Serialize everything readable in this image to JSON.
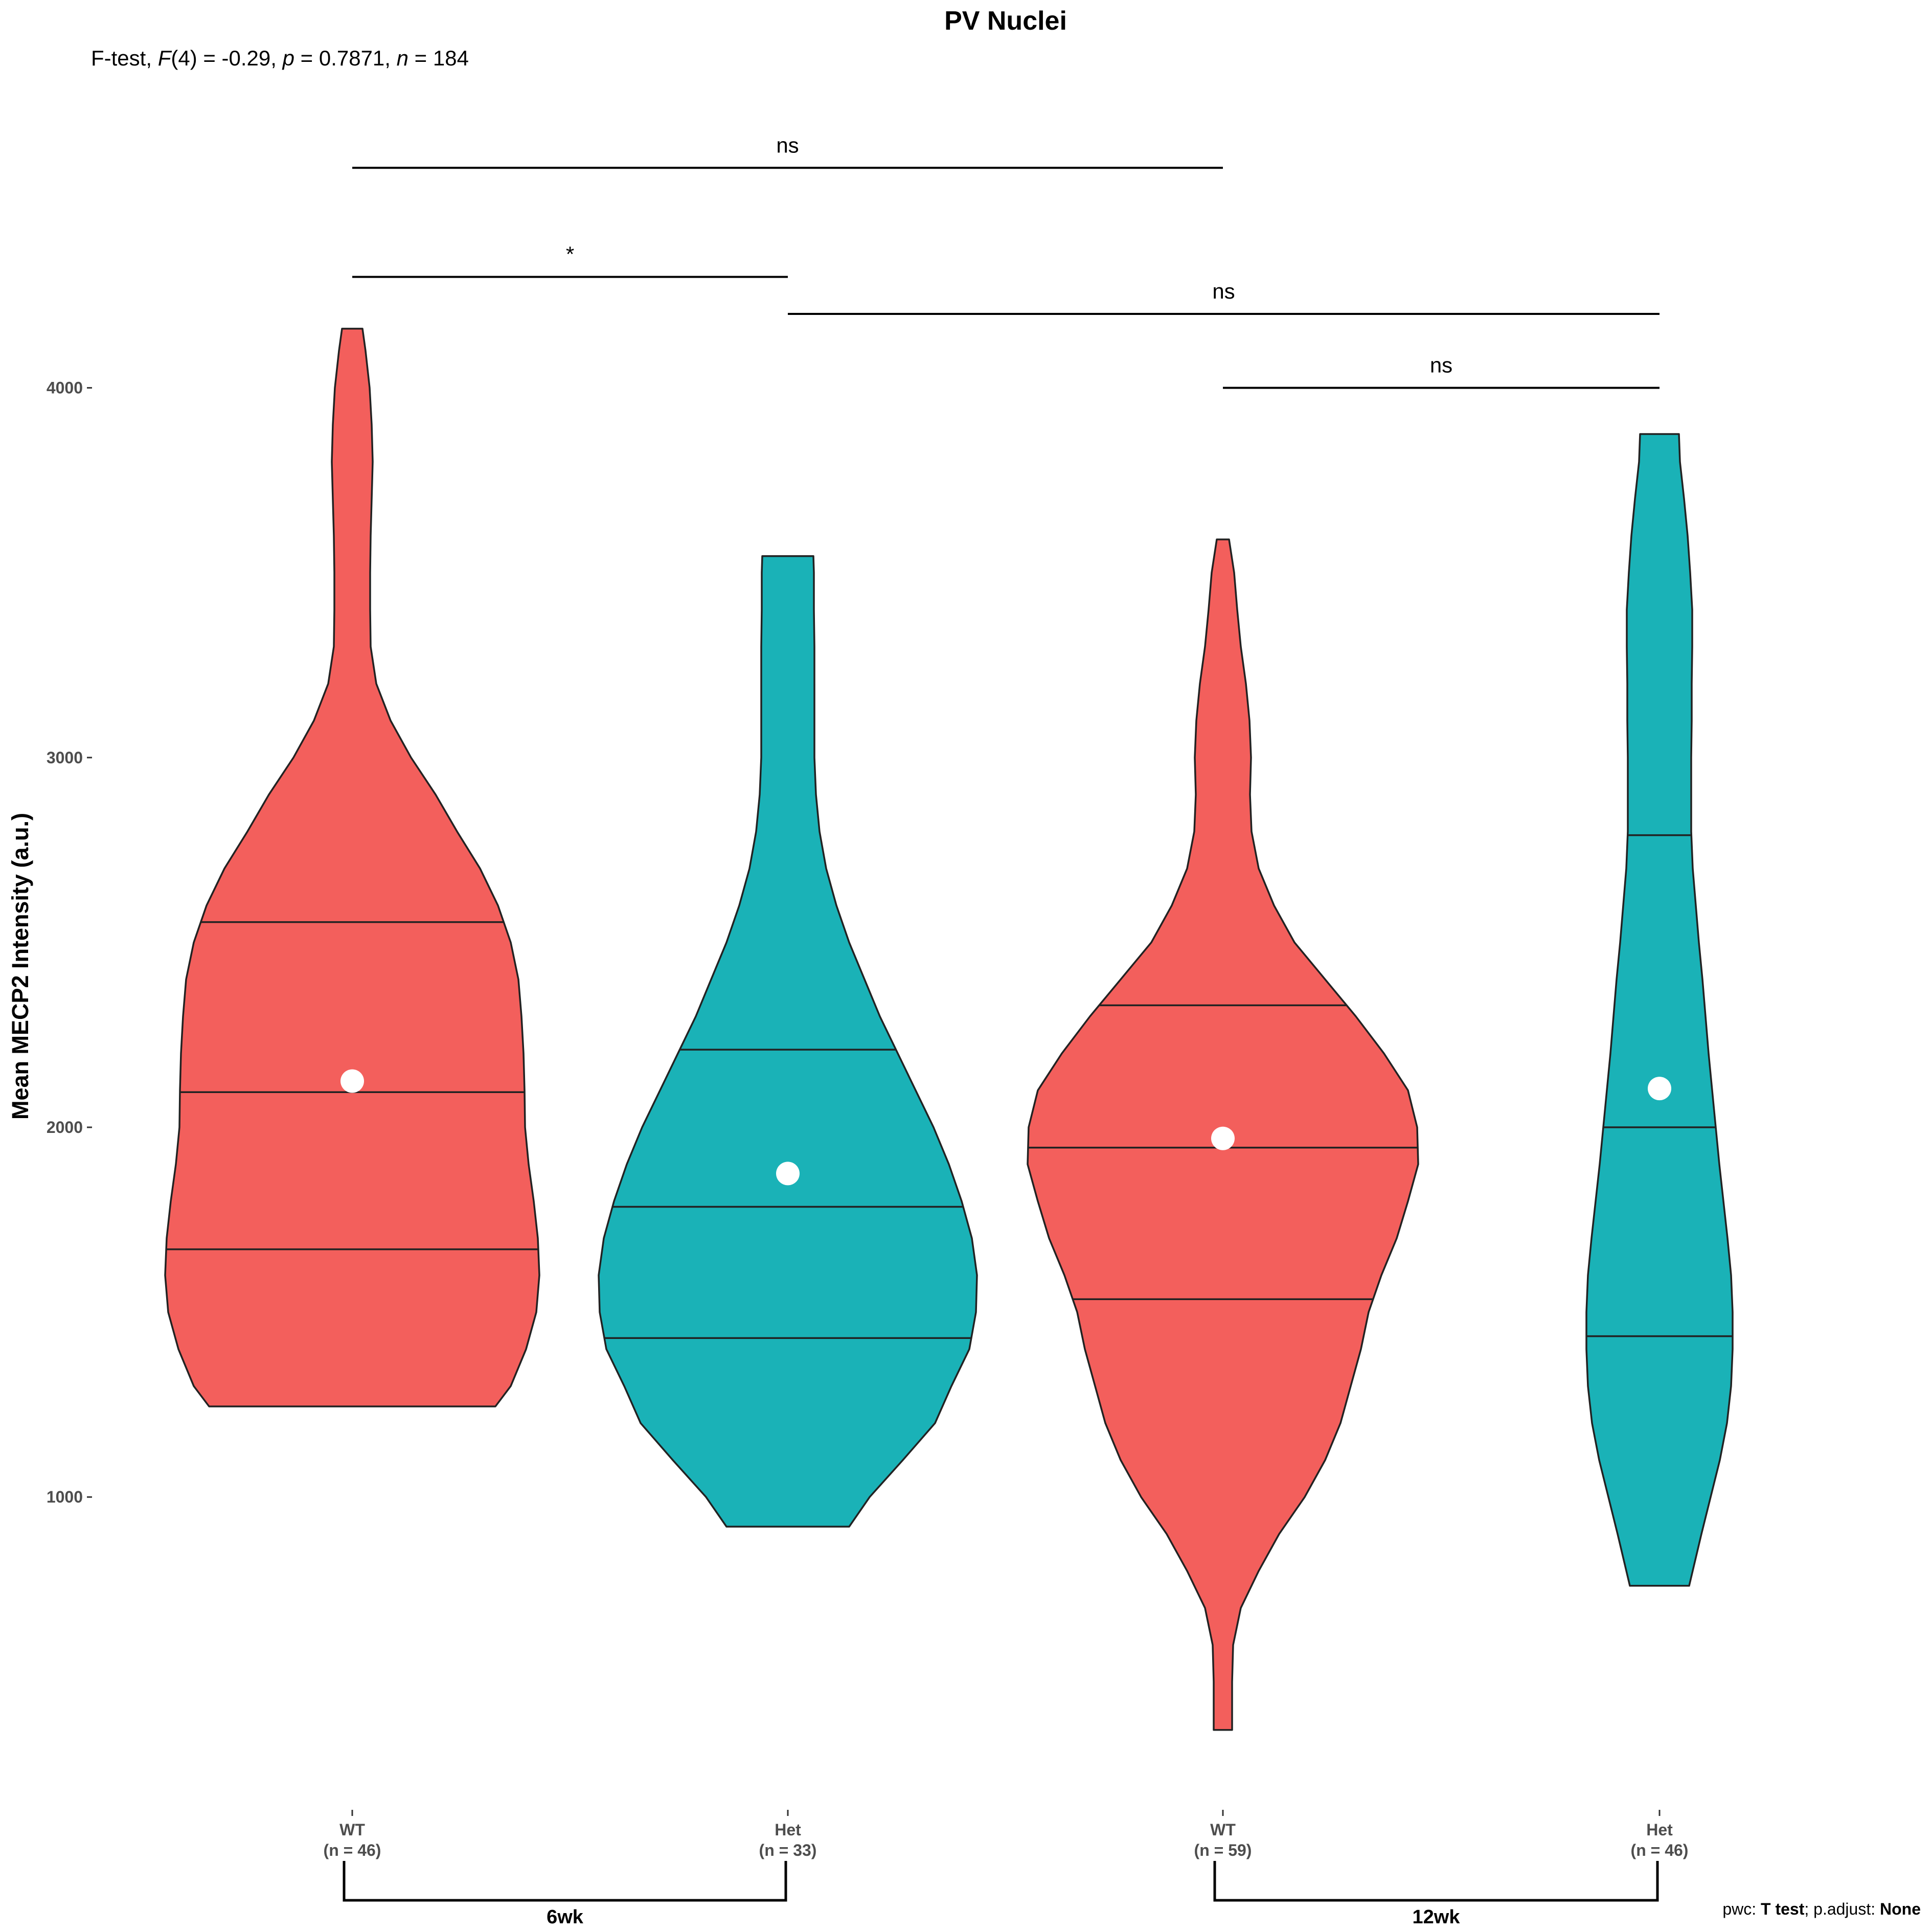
{
  "chart_data": {
    "type": "violin",
    "title": "PV Nuclei",
    "subtitle_parts": [
      {
        "t": "F-test, ",
        "i": false
      },
      {
        "t": "F",
        "i": true
      },
      {
        "t": "(4) = -0.29, ",
        "i": false
      },
      {
        "t": "p",
        "i": true
      },
      {
        "t": " = 0.7871, ",
        "i": false
      },
      {
        "t": "n",
        "i": true
      },
      {
        "t": " = 184",
        "i": false
      }
    ],
    "ylabel": "Mean MECP2 Intensity (a.u.)",
    "yticks": [
      1000,
      2000,
      3000,
      4000
    ],
    "categories": [
      {
        "genotype": "WT",
        "n_label": "(n = 46)",
        "group": "6wk",
        "color": "#F35F5C"
      },
      {
        "genotype": "Het",
        "n_label": "(n = 33)",
        "group": "6wk",
        "color": "#1AB2B7"
      },
      {
        "genotype": "WT",
        "n_label": "(n = 59)",
        "group": "12wk",
        "color": "#F35F5C"
      },
      {
        "genotype": "Het",
        "n_label": "(n = 46)",
        "group": "12wk",
        "color": "#1AB2B7"
      }
    ],
    "groups": [
      {
        "label": "6wk",
        "from": 0,
        "to": 1
      },
      {
        "label": "12wk",
        "from": 2,
        "to": 3
      }
    ],
    "violins": [
      {
        "min": 1245,
        "max": 4160,
        "quantiles": [
          1670,
          2095,
          2555
        ],
        "mean": 2125,
        "profile": [
          [
            1245,
            280
          ],
          [
            1300,
            310
          ],
          [
            1400,
            340
          ],
          [
            1500,
            360
          ],
          [
            1600,
            366
          ],
          [
            1700,
            363
          ],
          [
            1800,
            355
          ],
          [
            1900,
            345
          ],
          [
            2000,
            338
          ],
          [
            2100,
            337
          ],
          [
            2200,
            335
          ],
          [
            2300,
            331
          ],
          [
            2400,
            325
          ],
          [
            2500,
            310
          ],
          [
            2600,
            285
          ],
          [
            2700,
            250
          ],
          [
            2800,
            205
          ],
          [
            2900,
            163
          ],
          [
            3000,
            115
          ],
          [
            3100,
            75
          ],
          [
            3200,
            47
          ],
          [
            3300,
            36
          ],
          [
            3400,
            35
          ],
          [
            3500,
            35
          ],
          [
            3600,
            36
          ],
          [
            3700,
            38
          ],
          [
            3800,
            40
          ],
          [
            3900,
            38
          ],
          [
            4000,
            34
          ],
          [
            4100,
            26
          ],
          [
            4160,
            20
          ]
        ]
      },
      {
        "min": 920,
        "max": 3545,
        "quantiles": [
          1430,
          1785,
          2210
        ],
        "mean": 1875,
        "profile": [
          [
            920,
            120
          ],
          [
            1000,
            160
          ],
          [
            1100,
            225
          ],
          [
            1200,
            288
          ],
          [
            1300,
            320
          ],
          [
            1400,
            355
          ],
          [
            1500,
            368
          ],
          [
            1600,
            370
          ],
          [
            1700,
            360
          ],
          [
            1800,
            340
          ],
          [
            1900,
            315
          ],
          [
            2000,
            285
          ],
          [
            2100,
            250
          ],
          [
            2200,
            215
          ],
          [
            2300,
            180
          ],
          [
            2400,
            150
          ],
          [
            2500,
            120
          ],
          [
            2600,
            95
          ],
          [
            2700,
            75
          ],
          [
            2800,
            62
          ],
          [
            2900,
            55
          ],
          [
            3000,
            52
          ],
          [
            3100,
            52
          ],
          [
            3200,
            52
          ],
          [
            3300,
            52
          ],
          [
            3400,
            51
          ],
          [
            3500,
            51
          ],
          [
            3545,
            50
          ]
        ]
      },
      {
        "min": 370,
        "max": 3590,
        "quantiles": [
          1535,
          1945,
          2330
        ],
        "mean": 1970,
        "profile": [
          [
            370,
            18
          ],
          [
            500,
            18
          ],
          [
            600,
            20
          ],
          [
            700,
            35
          ],
          [
            800,
            70
          ],
          [
            900,
            110
          ],
          [
            1000,
            160
          ],
          [
            1100,
            200
          ],
          [
            1200,
            230
          ],
          [
            1300,
            250
          ],
          [
            1400,
            270
          ],
          [
            1500,
            285
          ],
          [
            1600,
            310
          ],
          [
            1700,
            340
          ],
          [
            1800,
            362
          ],
          [
            1900,
            382
          ],
          [
            2000,
            380
          ],
          [
            2100,
            362
          ],
          [
            2200,
            315
          ],
          [
            2300,
            260
          ],
          [
            2400,
            200
          ],
          [
            2500,
            140
          ],
          [
            2600,
            100
          ],
          [
            2700,
            70
          ],
          [
            2800,
            56
          ],
          [
            2900,
            53
          ],
          [
            3000,
            55
          ],
          [
            3100,
            52
          ],
          [
            3200,
            45
          ],
          [
            3300,
            35
          ],
          [
            3400,
            28
          ],
          [
            3500,
            22
          ],
          [
            3590,
            12
          ]
        ]
      },
      {
        "min": 760,
        "max": 3875,
        "quantiles": [
          1435,
          2000,
          2790
        ],
        "mean": 2105,
        "profile": [
          [
            760,
            58
          ],
          [
            900,
            82
          ],
          [
            1000,
            100
          ],
          [
            1100,
            118
          ],
          [
            1200,
            132
          ],
          [
            1300,
            140
          ],
          [
            1400,
            143
          ],
          [
            1500,
            143
          ],
          [
            1600,
            140
          ],
          [
            1700,
            133
          ],
          [
            1800,
            125
          ],
          [
            1900,
            117
          ],
          [
            2000,
            110
          ],
          [
            2100,
            103
          ],
          [
            2200,
            96
          ],
          [
            2300,
            90
          ],
          [
            2400,
            84
          ],
          [
            2500,
            77
          ],
          [
            2600,
            71
          ],
          [
            2700,
            65
          ],
          [
            2800,
            62
          ],
          [
            2900,
            62
          ],
          [
            3000,
            62
          ],
          [
            3100,
            63
          ],
          [
            3200,
            63
          ],
          [
            3300,
            64
          ],
          [
            3400,
            64
          ],
          [
            3500,
            60
          ],
          [
            3600,
            55
          ],
          [
            3700,
            48
          ],
          [
            3800,
            40
          ],
          [
            3875,
            38
          ]
        ]
      }
    ],
    "comparisons": [
      {
        "from": 0,
        "to": 2,
        "label": "ns",
        "y": 4595
      },
      {
        "from": 0,
        "to": 1,
        "label": "*",
        "y": 4300
      },
      {
        "from": 1,
        "to": 3,
        "label": "ns",
        "y": 4200
      },
      {
        "from": 2,
        "to": 3,
        "label": "ns",
        "y": 4000
      }
    ],
    "caption_parts": [
      {
        "t": "pwc: ",
        "b": false
      },
      {
        "t": "T test",
        "b": true
      },
      {
        "t": "; p.adjust: ",
        "b": false
      },
      {
        "t": "None",
        "b": true
      }
    ]
  }
}
